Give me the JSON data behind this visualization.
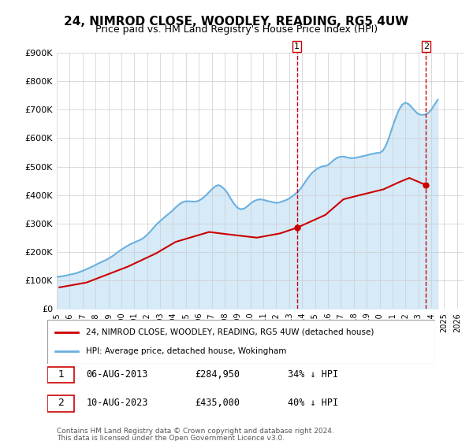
{
  "title": "24, NIMROD CLOSE, WOODLEY, READING, RG5 4UW",
  "subtitle": "Price paid vs. HM Land Registry's House Price Index (HPI)",
  "ylabel": "",
  "xlabel": "",
  "ylim": [
    0,
    900000
  ],
  "xlim_start": 1995.0,
  "xlim_end": 2026.5,
  "yticks": [
    0,
    100000,
    200000,
    300000,
    400000,
    500000,
    600000,
    700000,
    800000,
    900000
  ],
  "ytick_labels": [
    "£0",
    "£100K",
    "£200K",
    "£300K",
    "£400K",
    "£500K",
    "£600K",
    "£700K",
    "£800K",
    "£900K"
  ],
  "xtick_years": [
    1995,
    1996,
    1997,
    1998,
    1999,
    2000,
    2001,
    2002,
    2003,
    2004,
    2005,
    2006,
    2007,
    2008,
    2009,
    2010,
    2011,
    2012,
    2013,
    2014,
    2015,
    2016,
    2017,
    2018,
    2019,
    2020,
    2021,
    2022,
    2023,
    2024,
    2025,
    2026
  ],
  "hpi_color": "#6ab0e0",
  "hpi_fill_color": "#d6eaf8",
  "price_color": "#cc0000",
  "vline1_x": 2013.6,
  "vline2_x": 2023.6,
  "marker1_label": "1",
  "marker2_label": "2",
  "sale1_date": "06-AUG-2013",
  "sale1_price": "£284,950",
  "sale1_note": "34% ↓ HPI",
  "sale1_x": 2013.6,
  "sale1_y": 284950,
  "sale2_date": "10-AUG-2023",
  "sale2_price": "£435,000",
  "sale2_note": "40% ↓ HPI",
  "sale2_x": 2023.6,
  "sale2_y": 435000,
  "legend_line1": "24, NIMROD CLOSE, WOODLEY, READING, RG5 4UW (detached house)",
  "legend_line2": "HPI: Average price, detached house, Wokingham",
  "footer1": "Contains HM Land Registry data © Crown copyright and database right 2024.",
  "footer2": "This data is licensed under the Open Government Licence v3.0.",
  "bg_color": "#ffffff",
  "plot_bg_color": "#ffffff",
  "grid_color": "#cccccc",
  "title_fontsize": 11,
  "subtitle_fontsize": 9,
  "hpi_data_x": [
    1995.0,
    1995.25,
    1995.5,
    1995.75,
    1996.0,
    1996.25,
    1996.5,
    1996.75,
    1997.0,
    1997.25,
    1997.5,
    1997.75,
    1998.0,
    1998.25,
    1998.5,
    1998.75,
    1999.0,
    1999.25,
    1999.5,
    1999.75,
    2000.0,
    2000.25,
    2000.5,
    2000.75,
    2001.0,
    2001.25,
    2001.5,
    2001.75,
    2002.0,
    2002.25,
    2002.5,
    2002.75,
    2003.0,
    2003.25,
    2003.5,
    2003.75,
    2004.0,
    2004.25,
    2004.5,
    2004.75,
    2005.0,
    2005.25,
    2005.5,
    2005.75,
    2006.0,
    2006.25,
    2006.5,
    2006.75,
    2007.0,
    2007.25,
    2007.5,
    2007.75,
    2008.0,
    2008.25,
    2008.5,
    2008.75,
    2009.0,
    2009.25,
    2009.5,
    2009.75,
    2010.0,
    2010.25,
    2010.5,
    2010.75,
    2011.0,
    2011.25,
    2011.5,
    2011.75,
    2012.0,
    2012.25,
    2012.5,
    2012.75,
    2013.0,
    2013.25,
    2013.5,
    2013.75,
    2014.0,
    2014.25,
    2014.5,
    2014.75,
    2015.0,
    2015.25,
    2015.5,
    2015.75,
    2016.0,
    2016.25,
    2016.5,
    2016.75,
    2017.0,
    2017.25,
    2017.5,
    2017.75,
    2018.0,
    2018.25,
    2018.5,
    2018.75,
    2019.0,
    2019.25,
    2019.5,
    2019.75,
    2020.0,
    2020.25,
    2020.5,
    2020.75,
    2021.0,
    2021.25,
    2021.5,
    2021.75,
    2022.0,
    2022.25,
    2022.5,
    2022.75,
    2023.0,
    2023.25,
    2023.5,
    2023.75,
    2024.0,
    2024.25,
    2024.5
  ],
  "hpi_data_y": [
    112000,
    113000,
    115000,
    117000,
    120000,
    122000,
    125000,
    129000,
    133000,
    138000,
    143000,
    148000,
    154000,
    160000,
    165000,
    170000,
    176000,
    183000,
    191000,
    200000,
    208000,
    215000,
    222000,
    228000,
    233000,
    238000,
    243000,
    250000,
    260000,
    272000,
    285000,
    298000,
    308000,
    318000,
    328000,
    337000,
    347000,
    358000,
    368000,
    375000,
    378000,
    378000,
    377000,
    377000,
    380000,
    387000,
    397000,
    408000,
    420000,
    430000,
    435000,
    430000,
    420000,
    405000,
    385000,
    368000,
    355000,
    350000,
    352000,
    360000,
    370000,
    378000,
    383000,
    385000,
    383000,
    380000,
    377000,
    375000,
    372000,
    374000,
    378000,
    382000,
    388000,
    396000,
    405000,
    415000,
    430000,
    447000,
    463000,
    477000,
    487000,
    495000,
    500000,
    502000,
    505000,
    515000,
    525000,
    532000,
    535000,
    535000,
    532000,
    530000,
    530000,
    532000,
    535000,
    537000,
    540000,
    543000,
    545000,
    548000,
    548000,
    556000,
    575000,
    605000,
    640000,
    672000,
    700000,
    718000,
    725000,
    720000,
    708000,
    695000,
    685000,
    682000,
    683000,
    688000,
    700000,
    718000,
    735000
  ],
  "price_data_x": [
    1995.2,
    1997.3,
    2000.5,
    2002.7,
    2004.2,
    2006.8,
    2008.2,
    2010.5,
    2012.3,
    2013.6,
    2015.8,
    2017.2,
    2018.5,
    2020.3,
    2021.5,
    2022.3,
    2023.6
  ],
  "price_data_y": [
    75000,
    92000,
    148000,
    195000,
    235000,
    270000,
    262000,
    250000,
    265000,
    284950,
    330000,
    385000,
    400000,
    420000,
    445000,
    460000,
    435000
  ]
}
